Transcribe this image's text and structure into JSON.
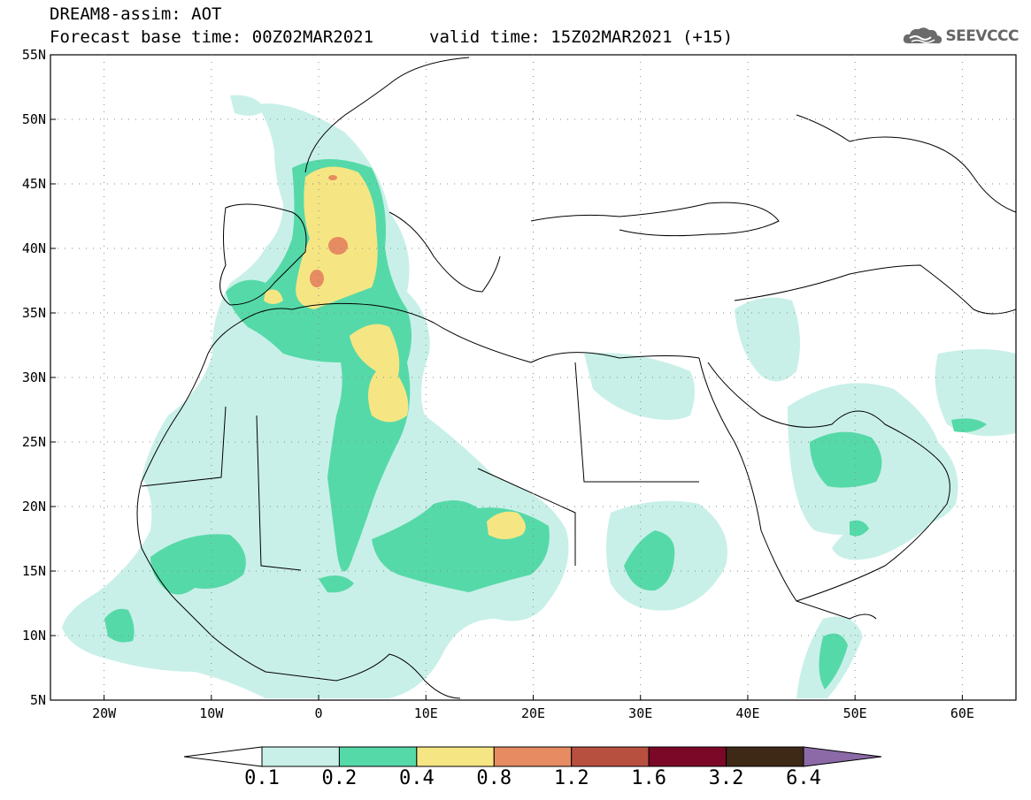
{
  "title": {
    "line1": "DREAM8-assim: AOT",
    "line2": "Forecast base time: 00Z02MAR2021",
    "valid": "valid time: 15Z02MAR2021 (+15)"
  },
  "logo": {
    "text": "SEEVCCC",
    "icon": "cloud-logo-icon"
  },
  "map": {
    "lon_range": [
      -25,
      65
    ],
    "lat_range": [
      5,
      55
    ],
    "lat_labels": [
      "55N",
      "50N",
      "45N",
      "40N",
      "35N",
      "30N",
      "25N",
      "20N",
      "15N",
      "10N",
      "5N"
    ],
    "lat_values": [
      55,
      50,
      45,
      40,
      35,
      30,
      25,
      20,
      15,
      10,
      5
    ],
    "lon_labels": [
      "20W",
      "10W",
      "0",
      "10E",
      "20E",
      "30E",
      "40E",
      "50E",
      "60E"
    ],
    "lon_values": [
      -20,
      -10,
      0,
      10,
      20,
      30,
      40,
      50,
      60
    ],
    "gridlines": "dotted"
  },
  "legend": {
    "labels": [
      "0.1",
      "0.2",
      "0.4",
      "0.8",
      "1.2",
      "1.6",
      "3.2",
      "6.4"
    ],
    "colors": [
      "#ffffff",
      "#c8f0e8",
      "#56d9a8",
      "#f6e683",
      "#e68b62",
      "#b85040",
      "#7c0827",
      "#3e2816",
      "#8c6aa8"
    ]
  }
}
